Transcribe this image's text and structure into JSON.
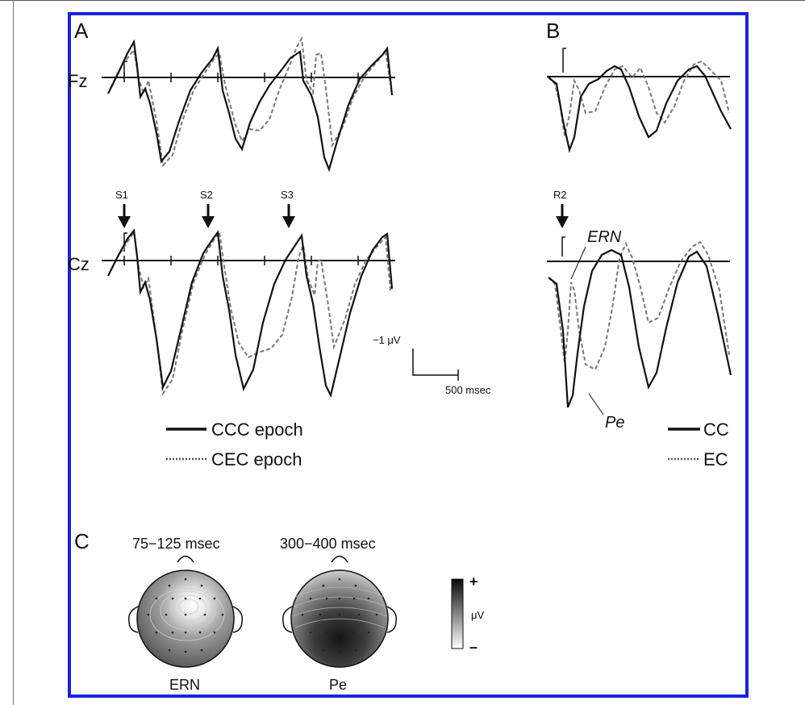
{
  "panels": {
    "a": {
      "letter": "A"
    },
    "b": {
      "letter": "B"
    },
    "c": {
      "letter": "C"
    }
  },
  "channels": {
    "fz": "Fz",
    "cz": "Cz"
  },
  "stimuli": [
    "S1",
    "S2",
    "S3"
  ],
  "response": "R2",
  "components": {
    "ern": "ERN",
    "pe": "Pe"
  },
  "scale_bar": {
    "amplitude": "−1 μV",
    "time": "500 msec"
  },
  "legend_a": {
    "solid": "CCC epoch",
    "dashed": "CEC epoch"
  },
  "legend_b": {
    "solid": "CC",
    "dashed": "EC"
  },
  "topomaps": [
    {
      "window": "75−125 msec",
      "component": "ERN"
    },
    {
      "window": "300−400 msec",
      "component": "Pe"
    }
  ],
  "colorbar": {
    "max": "+",
    "unit": "μV",
    "min": "–"
  },
  "colors": {
    "frame": "#1a22e0",
    "solid_trace": "#111111",
    "dashed_trace": "#777777"
  }
}
